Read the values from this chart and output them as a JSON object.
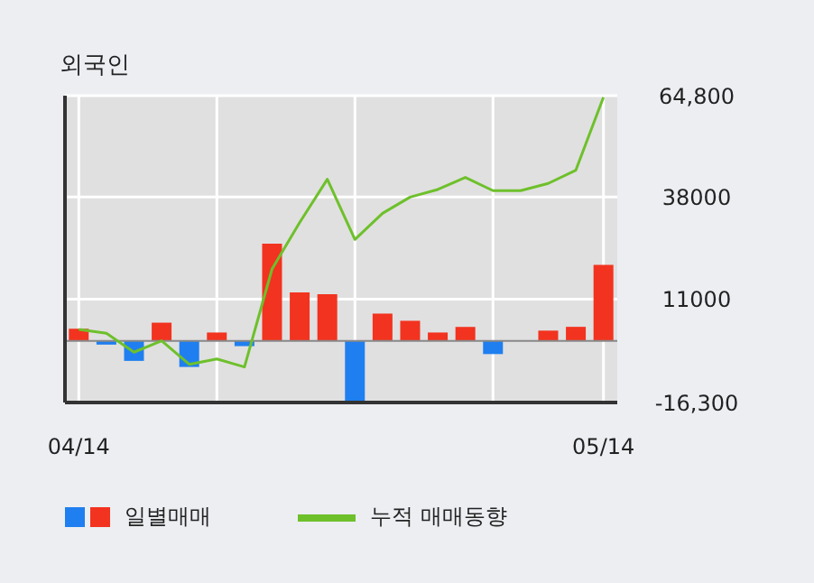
{
  "chart_data": {
    "type": "bar",
    "title": "외국인",
    "categories": [
      "04/14",
      null,
      null,
      null,
      null,
      null,
      null,
      null,
      null,
      null,
      null,
      null,
      null,
      null,
      null,
      null,
      null,
      null,
      null,
      "05/14"
    ],
    "series": [
      {
        "name": "일별매매",
        "axis": "y2",
        "colors": [
          "#f2331f",
          "#1f7ff0",
          "#1f7ff0",
          "#f2331f",
          "#1f7ff0",
          "#f2331f",
          "#1f7ff0",
          "#f2331f",
          "#f2331f",
          "#f2331f",
          "#1f7ff0",
          "#f2331f",
          "#f2331f",
          "#f2331f",
          "#f2331f",
          "#1f7ff0",
          "#f2331f",
          "#f2331f",
          "#f2331f",
          "#f2331f"
        ],
        "values": [
          3200,
          -1000,
          -5300,
          4800,
          -6900,
          2200,
          -1400,
          25700,
          12800,
          12300,
          -16000,
          7200,
          5300,
          2200,
          3700,
          -3500,
          0,
          2700,
          3700,
          20100
        ]
      },
      {
        "name": "누적 매매동향",
        "type": "line",
        "axis": "y2",
        "color": "#6ec02b",
        "values": [
          3000,
          2000,
          -3000,
          0,
          -6200,
          -4800,
          -6900,
          19000,
          31300,
          42700,
          26800,
          33700,
          38000,
          40000,
          43200,
          39700,
          39700,
          41600,
          45100,
          64400
        ]
      }
    ],
    "y2lim": [
      -16300,
      64800
    ],
    "y2ticks": [
      {
        "value": 64800,
        "label": "64,800"
      },
      38000,
      11000,
      {
        "value": -16300,
        "label": "-16,300"
      }
    ],
    "grid": true,
    "legend": "bottom",
    "marker": "none"
  }
}
